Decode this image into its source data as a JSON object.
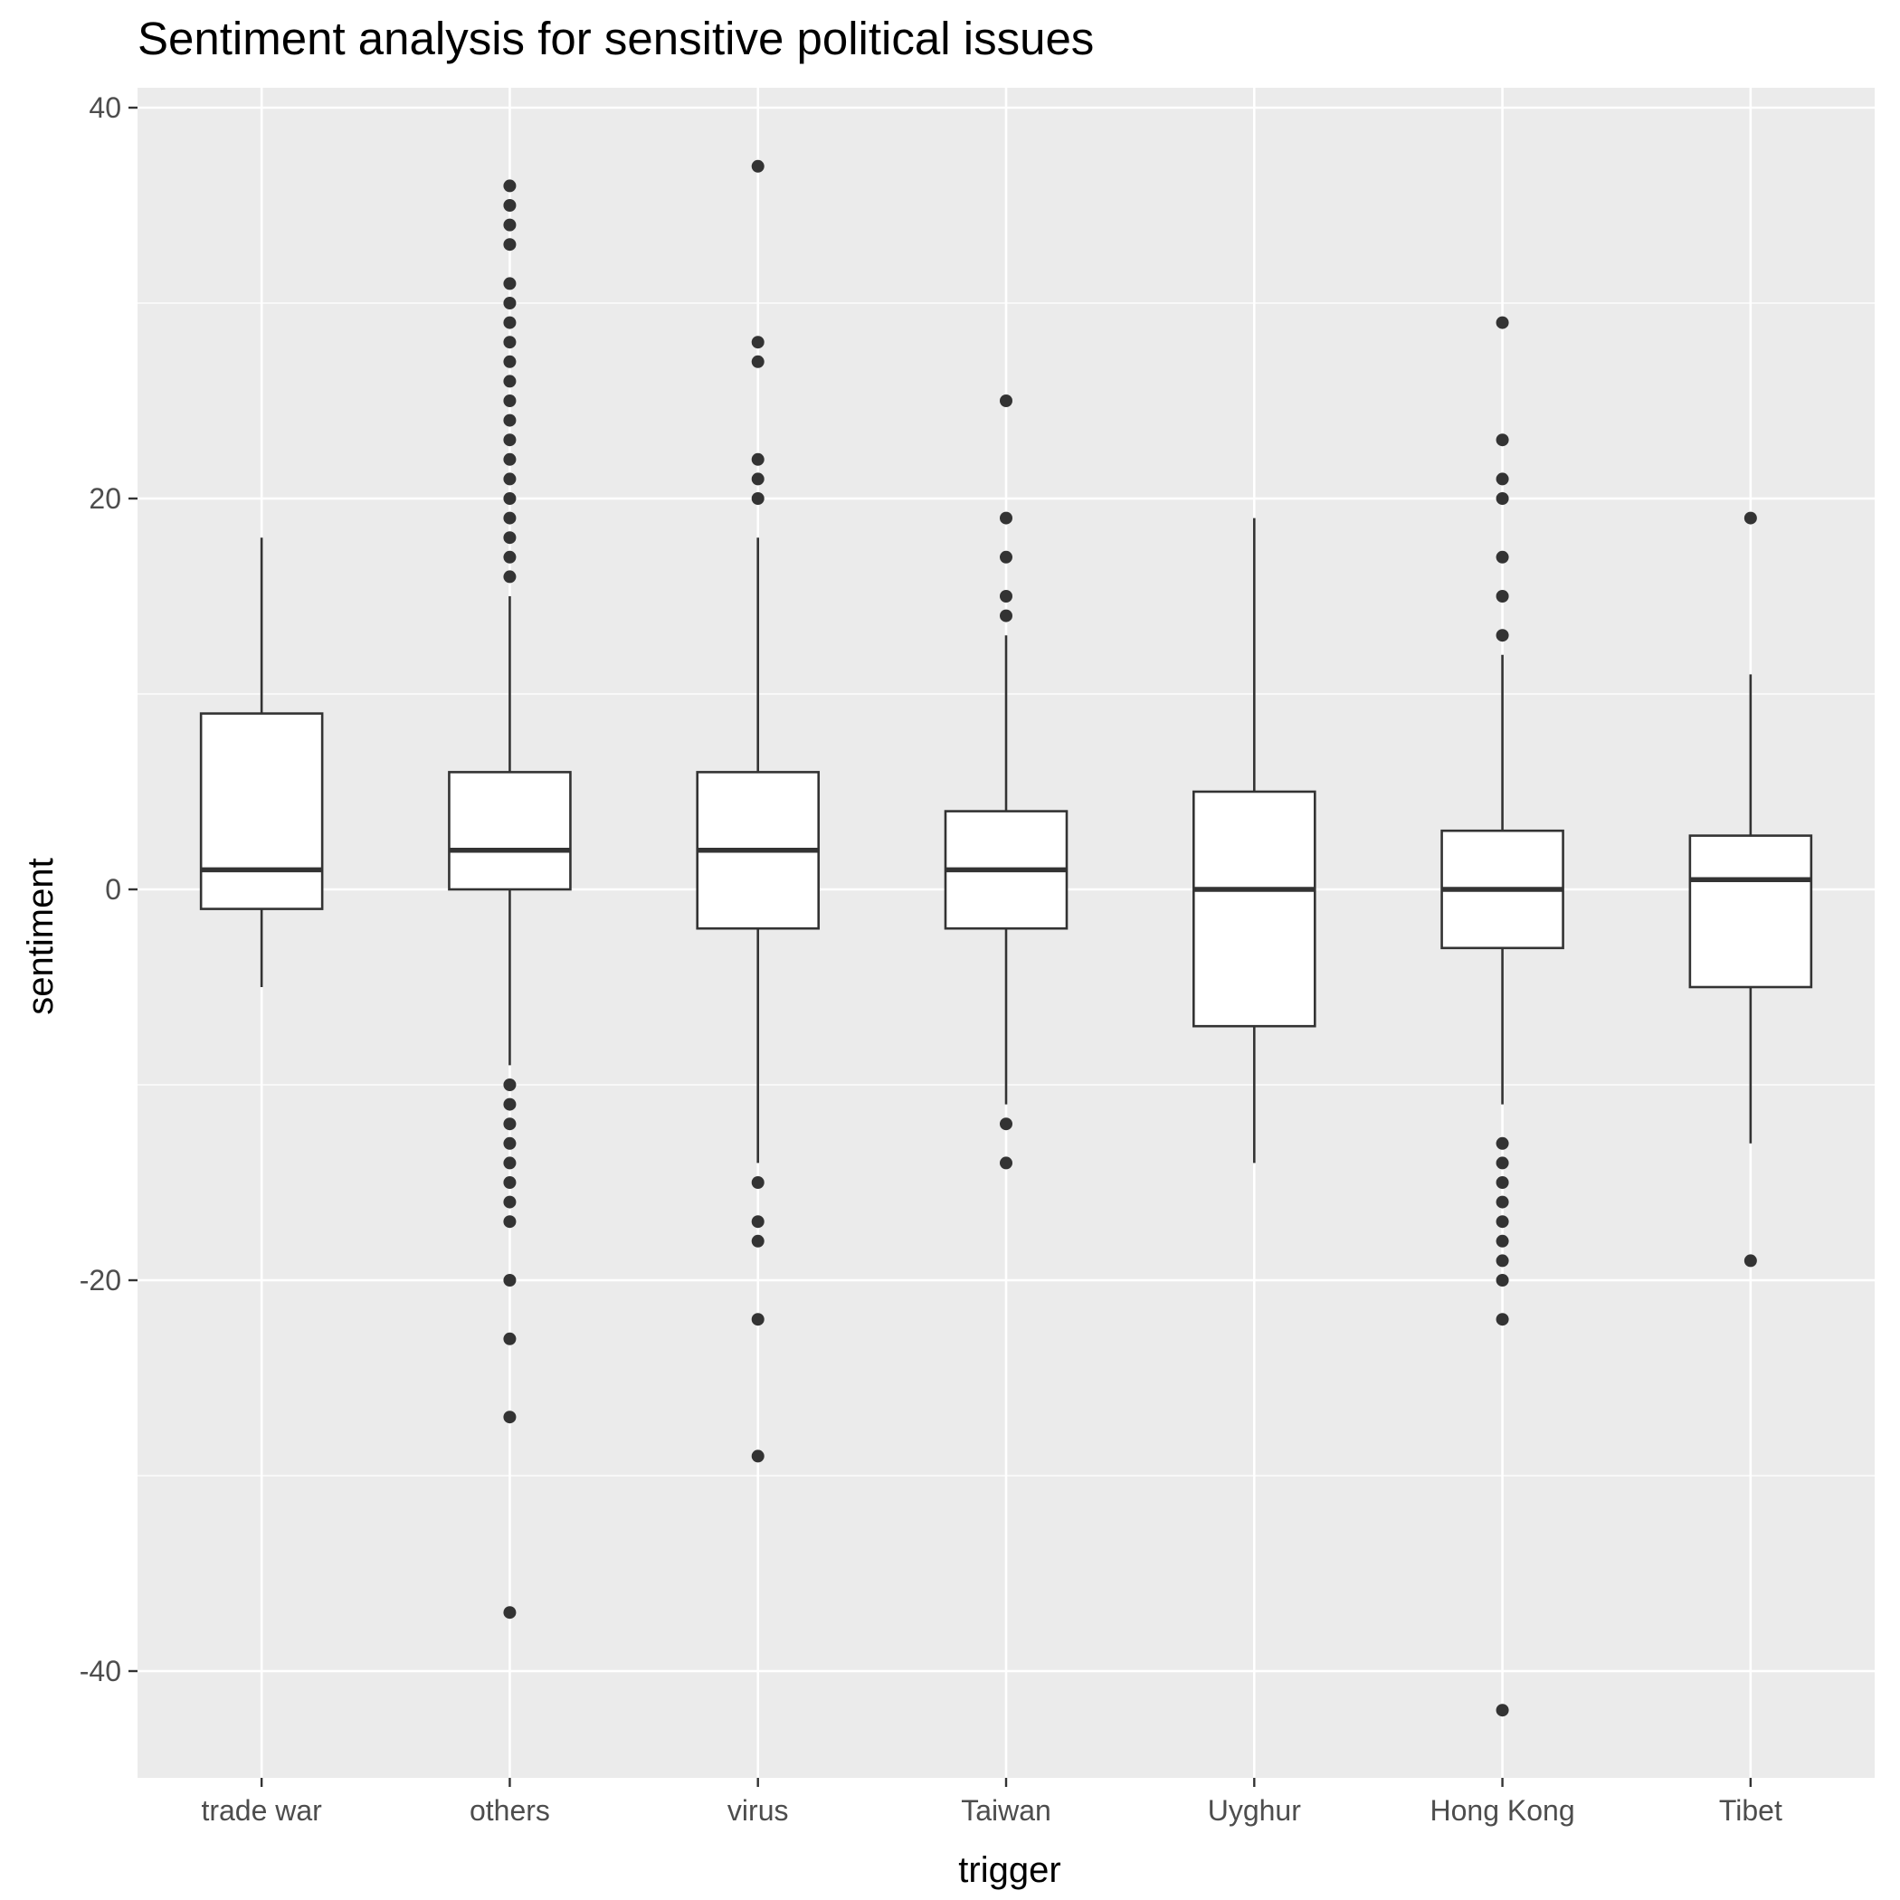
{
  "chart_data": {
    "type": "boxplot",
    "title": "Sentiment analysis for sensitive political issues",
    "xlabel": "trigger",
    "ylabel": "sentiment",
    "ylim": [
      -45,
      41
    ],
    "yticks": [
      -40,
      -20,
      0,
      20,
      40
    ],
    "grid": true,
    "categories": [
      "trade war",
      "others",
      "virus",
      "Taiwan",
      "Uyghur",
      "Hong Kong",
      "Tibet"
    ],
    "series": [
      {
        "category": "trade war",
        "whisker_low": -5,
        "q1": -1,
        "median": 1,
        "q3": 9,
        "whisker_high": 18,
        "outliers": []
      },
      {
        "category": "others",
        "whisker_low": -9,
        "q1": 0,
        "median": 2,
        "q3": 6,
        "whisker_high": 15,
        "outliers": [
          16,
          17,
          18,
          19,
          20,
          21,
          22,
          23,
          24,
          25,
          26,
          27,
          28,
          29,
          30,
          31,
          33,
          34,
          35,
          36,
          -10,
          -11,
          -12,
          -13,
          -14,
          -15,
          -16,
          -17,
          -20,
          -23,
          -27,
          -37
        ]
      },
      {
        "category": "virus",
        "whisker_low": -14,
        "q1": -2,
        "median": 2,
        "q3": 6,
        "whisker_high": 18,
        "outliers": [
          20,
          21,
          22,
          27,
          28,
          37,
          -15,
          -17,
          -18,
          -22,
          -29
        ]
      },
      {
        "category": "Taiwan",
        "whisker_low": -11,
        "q1": -2,
        "median": 1,
        "q3": 4,
        "whisker_high": 13,
        "outliers": [
          14,
          15,
          17,
          19,
          25,
          -12,
          -14
        ]
      },
      {
        "category": "Uyghur",
        "whisker_low": -14,
        "q1": -7,
        "median": 0,
        "q3": 5,
        "whisker_high": 19,
        "outliers": []
      },
      {
        "category": "Hong Kong",
        "whisker_low": -11,
        "q1": -3,
        "median": 0,
        "q3": 3,
        "whisker_high": 12,
        "outliers": [
          13,
          15,
          17,
          20,
          21,
          23,
          29,
          -13,
          -14,
          -15,
          -16,
          -17,
          -18,
          -19,
          -20,
          -22,
          -42
        ]
      },
      {
        "category": "Tibet",
        "whisker_low": -13,
        "q1": -5,
        "median": 0.5,
        "q3": 2.75,
        "whisker_high": 11,
        "outliers": [
          19,
          -19
        ]
      }
    ]
  },
  "colors": {
    "panel_background": "#ebebeb",
    "grid_line": "#ffffff",
    "box_fill": "#ffffff",
    "box_stroke": "#333333",
    "outlier": "#333333",
    "tick": "#333333"
  }
}
